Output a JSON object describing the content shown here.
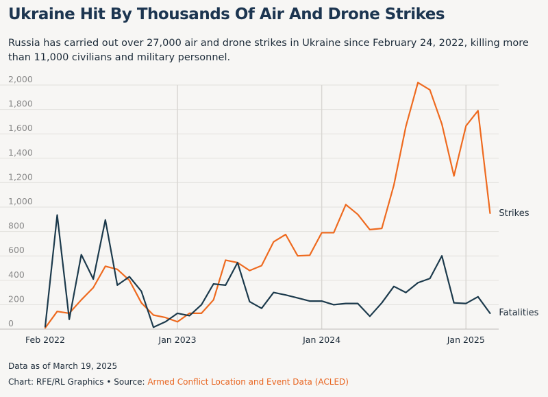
{
  "title": "Ukraine Hit By Thousands Of Air And Drone Strikes",
  "subtitle": "Russia has carried out over 27,000 air and drone strikes in Ukraine since February 24, 2022, killing more than 11,000 civilians and military personnel.",
  "footer": {
    "data_as_of": "Data as of March 19, 2025",
    "credit_prefix": "Chart: RFE/RL Graphics • Source: ",
    "source_name": "Armed Conflict Location and Event Data (ACLED)"
  },
  "colors": {
    "strikes": "#ee6a1f",
    "fatalities": "#1c3a4c",
    "grid": "#e2e0dc",
    "year_line": "#d9d7d3",
    "axis_text": "#8a8a8a"
  },
  "chart_data": {
    "type": "line",
    "x": [
      "2022-02",
      "2022-03",
      "2022-04",
      "2022-05",
      "2022-06",
      "2022-07",
      "2022-08",
      "2022-09",
      "2022-10",
      "2022-11",
      "2022-12",
      "2023-01",
      "2023-02",
      "2023-03",
      "2023-04",
      "2023-05",
      "2023-06",
      "2023-07",
      "2023-08",
      "2023-09",
      "2023-10",
      "2023-11",
      "2023-12",
      "2024-01",
      "2024-02",
      "2024-03",
      "2024-04",
      "2024-05",
      "2024-06",
      "2024-07",
      "2024-08",
      "2024-09",
      "2024-10",
      "2024-11",
      "2024-12",
      "2025-01",
      "2025-02",
      "2025-03"
    ],
    "series": [
      {
        "name": "Strikes",
        "values": [
          10,
          145,
          130,
          240,
          340,
          515,
          490,
          400,
          215,
          115,
          95,
          60,
          130,
          130,
          240,
          565,
          545,
          480,
          520,
          715,
          775,
          600,
          605,
          790,
          790,
          1020,
          940,
          815,
          825,
          1180,
          1660,
          2020,
          1960,
          1680,
          1255,
          1665,
          1790,
          950
        ]
      },
      {
        "name": "Fatalities",
        "values": [
          20,
          935,
          80,
          610,
          410,
          895,
          360,
          430,
          310,
          15,
          60,
          130,
          110,
          200,
          370,
          360,
          545,
          225,
          170,
          300,
          280,
          255,
          230,
          230,
          200,
          210,
          210,
          105,
          215,
          350,
          300,
          380,
          415,
          600,
          215,
          210,
          265,
          130
        ]
      }
    ],
    "xticks": [
      {
        "x": "2022-02",
        "label": "Feb 2022"
      },
      {
        "x": "2023-01",
        "label": "Jan 2023"
      },
      {
        "x": "2024-01",
        "label": "Jan 2024"
      },
      {
        "x": "2025-01",
        "label": "Jan 2025"
      }
    ],
    "yticks": [
      0,
      200,
      400,
      600,
      800,
      1000,
      1200,
      1400,
      1600,
      1800,
      2000
    ],
    "ytick_labels": [
      "0",
      "200",
      "400",
      "600",
      "800",
      "1,000",
      "1,200",
      "1,400",
      "1,600",
      "1,800",
      "2,000"
    ],
    "ylim": [
      0,
      2000
    ],
    "grid": true,
    "legend": "direct-labels-right"
  }
}
